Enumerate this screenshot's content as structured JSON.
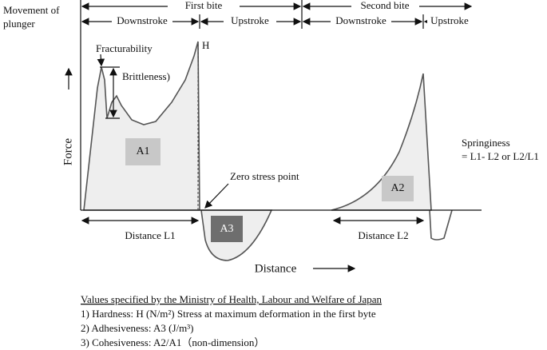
{
  "header": {
    "movement": [
      "Movement of",
      "plunger"
    ]
  },
  "bites": [
    {
      "label": "First bite",
      "phases": [
        "Downstroke",
        "Upstroke"
      ]
    },
    {
      "label": "Second bite",
      "phases": [
        "Downstroke",
        "Upstroke"
      ]
    }
  ],
  "diagram": {
    "peak_label": "H",
    "fracturability": "Fracturability",
    "brittleness": "Brittleness)",
    "y_axis": "Force",
    "x_axis": "Distance",
    "areas": [
      "A1",
      "A2",
      "A3"
    ],
    "zero_stress": "Zero stress point",
    "springiness": [
      "Springiness",
      "= L1- L2 or L2/L1"
    ],
    "distances": [
      "Distance L1",
      "Distance L2"
    ]
  },
  "notes": {
    "title": "Values specified by the Ministry of Health, Labour and Welfare of Japan",
    "items": [
      "1) Hardness: H (N/m²)   Stress at maximum deformation in the first byte",
      "2) Adhesiveness: A3 (J/m³)",
      "3) Cohesiveness: A2/A1（non-dimension）"
    ]
  }
}
